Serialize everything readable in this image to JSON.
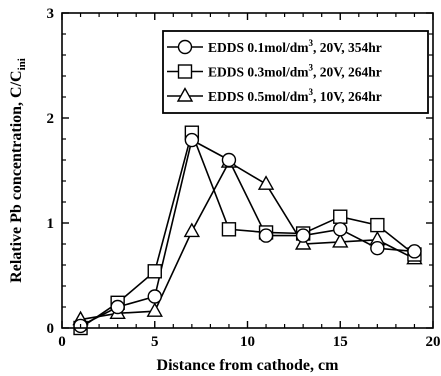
{
  "chart_data": {
    "type": "line",
    "xlabel": "Distance from cathode, cm",
    "ylabel": "Relative Pb concentration, C/C",
    "ylabel_sub": "ini",
    "xlim": [
      0,
      20
    ],
    "ylim": [
      0,
      3
    ],
    "x_ticks": [
      0,
      5,
      10,
      15,
      20
    ],
    "y_ticks": [
      0,
      1,
      2,
      3
    ],
    "grid": false,
    "legend_position": "top-right",
    "series": [
      {
        "name": "EDDS 0.1mol/dm3, 20V, 354hr",
        "legend_parts": [
          "EDDS 0.1mol/dm",
          "3",
          ", 20V, 354hr"
        ],
        "marker": "circle",
        "x": [
          1,
          3,
          5,
          7,
          9,
          11,
          13,
          15,
          17,
          19
        ],
        "y": [
          0.02,
          0.2,
          0.3,
          1.79,
          1.6,
          0.88,
          0.88,
          0.94,
          0.76,
          0.73
        ]
      },
      {
        "name": "EDDS 0.3mol/dm3, 20V, 264hr",
        "legend_parts": [
          "EDDS 0.3mol/dm",
          "3",
          ", 20V, 264hr"
        ],
        "marker": "square",
        "x": [
          1,
          3,
          5,
          7,
          9,
          11,
          13,
          15,
          17,
          19
        ],
        "y": [
          0.0,
          0.24,
          0.54,
          1.86,
          0.94,
          0.91,
          0.9,
          1.06,
          0.98,
          0.7
        ]
      },
      {
        "name": "EDDS 0.5mol/dm3, 10V, 264hr",
        "legend_parts": [
          "EDDS 0.5mol/dm",
          "3",
          ", 10V, 264hr"
        ],
        "marker": "triangle",
        "x": [
          1,
          3,
          5,
          7,
          9,
          11,
          13,
          15,
          17,
          19
        ],
        "y": [
          0.08,
          0.14,
          0.16,
          0.92,
          1.58,
          1.37,
          0.8,
          0.82,
          0.84,
          0.66
        ]
      }
    ]
  }
}
